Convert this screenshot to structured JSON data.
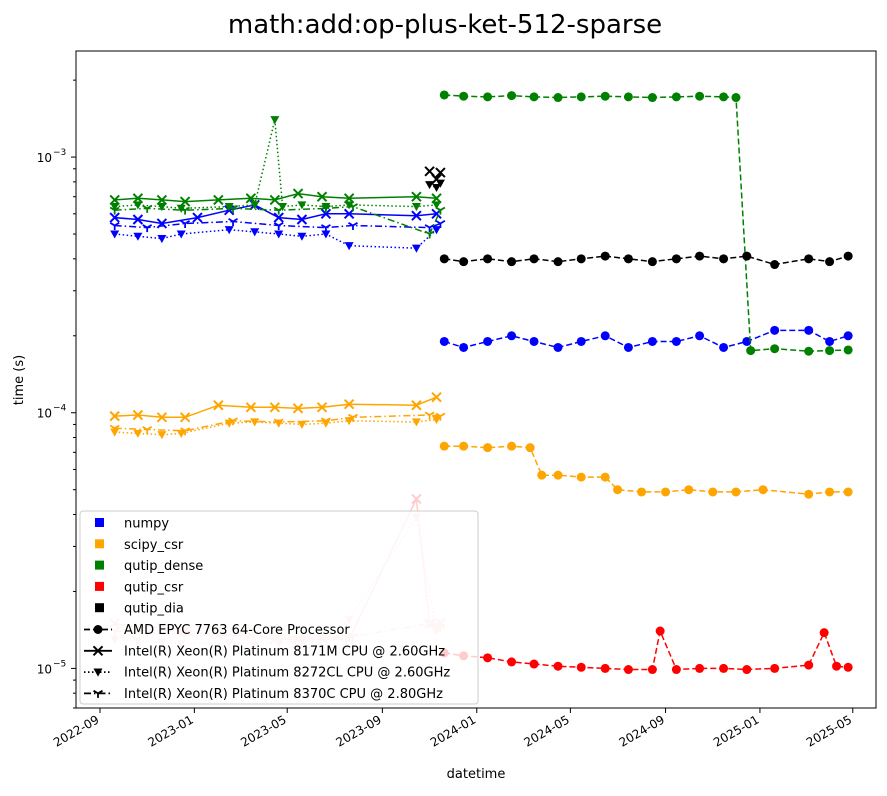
{
  "chart_data": {
    "type": "line",
    "title": "math:add:op-plus-ket-512-sparse",
    "xlabel": "datetime",
    "ylabel": "time (s)",
    "yscale": "log",
    "xlim": [
      "2022-08-01",
      "2025-05-31"
    ],
    "ylim": [
      7e-06,
      0.0026
    ],
    "grid": false,
    "legend_position": "lower-left",
    "x_ticks": [
      "2022-09",
      "2023-01",
      "2023-05",
      "2023-09",
      "2024-01",
      "2024-05",
      "2024-09",
      "2025-01",
      "2025-05"
    ],
    "x_tick_dates": [
      "2022-09-01",
      "2023-01-01",
      "2023-05-01",
      "2023-09-01",
      "2024-01-01",
      "2024-05-01",
      "2024-09-01",
      "2025-01-01",
      "2025-05-01"
    ],
    "y_ticks": [
      {
        "value": 1e-05,
        "base": "10",
        "exp": "−5"
      },
      {
        "value": 0.0001,
        "base": "10",
        "exp": "−4"
      },
      {
        "value": 0.001,
        "base": "10",
        "exp": "−3"
      }
    ],
    "legend_colors": [
      {
        "label": "numpy",
        "color": "#0000ff"
      },
      {
        "label": "scipy_csr",
        "color": "#ffa500"
      },
      {
        "label": "qutip_dense",
        "color": "#008000"
      },
      {
        "label": "qutip_csr",
        "color": "#ff0000"
      },
      {
        "label": "qutip_dia",
        "color": "#000000"
      }
    ],
    "legend_cpus": [
      {
        "label": "AMD EPYC 7763 64-Core Processor",
        "marker": "circle",
        "dash": "dashed"
      },
      {
        "label": "Intel(R) Xeon(R) Platinum 8171M CPU @ 2.60GHz",
        "marker": "x",
        "dash": "solid"
      },
      {
        "label": "Intel(R) Xeon(R) Platinum 8272CL CPU @ 2.60GHz",
        "marker": "triangle-down",
        "dash": "dotted"
      },
      {
        "label": "Intel(R) Xeon(R) Platinum 8370C CPU @ 2.80GHz",
        "marker": "tri-down",
        "dash": "dashdot"
      }
    ],
    "series": [
      {
        "library": "numpy",
        "cpu": "AMD EPYC 7763 64-Core Processor",
        "color": "#0000ff",
        "x": [
          "2023-11-20",
          "2023-12-15",
          "2024-01-15",
          "2024-02-15",
          "2024-03-15",
          "2024-04-15",
          "2024-05-15",
          "2024-06-15",
          "2024-07-15",
          "2024-08-15",
          "2024-09-15",
          "2024-10-15",
          "2024-11-15",
          "2024-12-15",
          "2025-01-20",
          "2025-03-05",
          "2025-04-01",
          "2025-04-25"
        ],
        "y": [
          0.00019,
          0.00018,
          0.00019,
          0.0002,
          0.00019,
          0.00018,
          0.00019,
          0.0002,
          0.00018,
          0.00019,
          0.00019,
          0.0002,
          0.00018,
          0.00019,
          0.00021,
          0.00021,
          0.00019,
          0.0002
        ]
      },
      {
        "library": "numpy",
        "cpu": "Intel(R) Xeon(R) Platinum 8171M CPU @ 2.60GHz",
        "color": "#0000ff",
        "x": [
          "2022-09-20",
          "2022-10-20",
          "2022-11-20",
          "2023-01-05",
          "2023-02-15",
          "2023-03-20",
          "2023-04-20",
          "2023-05-20",
          "2023-06-20",
          "2023-07-20",
          "2023-10-15",
          "2023-11-10"
        ],
        "y": [
          0.00058,
          0.00057,
          0.00055,
          0.00058,
          0.00062,
          0.00065,
          0.00058,
          0.00057,
          0.0006,
          0.0006,
          0.00059,
          0.0006
        ]
      },
      {
        "library": "numpy",
        "cpu": "Intel(R) Xeon(R) Platinum 8272CL CPU @ 2.60GHz",
        "color": "#0000ff",
        "x": [
          "2022-09-20",
          "2022-10-20",
          "2022-11-20",
          "2022-12-15",
          "2023-02-15",
          "2023-03-20",
          "2023-04-20",
          "2023-05-20",
          "2023-06-20",
          "2023-07-20",
          "2023-10-15",
          "2023-11-10"
        ],
        "y": [
          0.0005,
          0.00049,
          0.00048,
          0.0005,
          0.00052,
          0.00051,
          0.0005,
          0.00049,
          0.0005,
          0.00045,
          0.00044,
          0.00052
        ]
      },
      {
        "library": "numpy",
        "cpu": "Intel(R) Xeon(R) Platinum 8370C CPU @ 2.80GHz",
        "color": "#0000ff",
        "x": [
          "2022-09-20",
          "2022-11-01",
          "2022-12-20",
          "2023-02-20",
          "2023-04-20",
          "2023-06-20",
          "2023-07-25",
          "2023-11-01",
          "2023-11-15"
        ],
        "y": [
          0.00054,
          0.00053,
          0.00055,
          0.00056,
          0.00054,
          0.00053,
          0.00054,
          0.00053,
          0.00055
        ]
      },
      {
        "library": "scipy_csr",
        "cpu": "AMD EPYC 7763 64-Core Processor",
        "color": "#ffa500",
        "x": [
          "2023-11-20",
          "2023-12-15",
          "2024-01-15",
          "2024-02-15",
          "2024-03-10",
          "2024-03-25",
          "2024-04-15",
          "2024-05-15",
          "2024-06-15",
          "2024-07-01",
          "2024-08-01",
          "2024-09-01",
          "2024-10-01",
          "2024-11-01",
          "2024-12-01",
          "2025-01-05",
          "2025-03-05",
          "2025-04-01",
          "2025-04-25"
        ],
        "y": [
          7.4e-05,
          7.4e-05,
          7.3e-05,
          7.4e-05,
          7.3e-05,
          5.7e-05,
          5.7e-05,
          5.6e-05,
          5.6e-05,
          5e-05,
          4.9e-05,
          4.9e-05,
          5e-05,
          4.9e-05,
          4.9e-05,
          5e-05,
          4.8e-05,
          4.9e-05,
          4.9e-05
        ]
      },
      {
        "library": "scipy_csr",
        "cpu": "Intel(R) Xeon(R) Platinum 8171M CPU @ 2.60GHz",
        "color": "#ffa500",
        "x": [
          "2022-09-20",
          "2022-10-20",
          "2022-11-20",
          "2022-12-20",
          "2023-02-01",
          "2023-03-15",
          "2023-04-15",
          "2023-05-15",
          "2023-06-15",
          "2023-07-20",
          "2023-10-15",
          "2023-11-10"
        ],
        "y": [
          9.7e-05,
          9.8e-05,
          9.6e-05,
          9.6e-05,
          0.000107,
          0.000105,
          0.000105,
          0.000104,
          0.000105,
          0.000108,
          0.000107,
          0.000115
        ]
      },
      {
        "library": "scipy_csr",
        "cpu": "Intel(R) Xeon(R) Platinum 8272CL CPU @ 2.60GHz",
        "color": "#ffa500",
        "x": [
          "2022-09-20",
          "2022-10-20",
          "2022-11-20",
          "2022-12-15",
          "2023-02-15",
          "2023-03-20",
          "2023-04-20",
          "2023-05-20",
          "2023-06-20",
          "2023-07-20",
          "2023-10-15",
          "2023-11-10"
        ],
        "y": [
          8.4e-05,
          8.3e-05,
          8.2e-05,
          8.3e-05,
          9.1e-05,
          9.2e-05,
          9.1e-05,
          9e-05,
          9.1e-05,
          9.3e-05,
          9.2e-05,
          9.4e-05
        ]
      },
      {
        "library": "scipy_csr",
        "cpu": "Intel(R) Xeon(R) Platinum 8370C CPU @ 2.80GHz",
        "color": "#ffa500",
        "x": [
          "2022-09-20",
          "2022-11-01",
          "2022-12-20",
          "2023-02-20",
          "2023-04-20",
          "2023-06-20",
          "2023-07-25",
          "2023-11-01",
          "2023-11-15"
        ],
        "y": [
          8.7e-05,
          8.6e-05,
          8.5e-05,
          9.3e-05,
          9.2e-05,
          9.3e-05,
          9.6e-05,
          9.8e-05,
          9.7e-05
        ]
      },
      {
        "library": "qutip_dense",
        "cpu": "AMD EPYC 7763 64-Core Processor",
        "color": "#008000",
        "x": [
          "2023-11-20",
          "2023-12-15",
          "2024-01-15",
          "2024-02-15",
          "2024-03-15",
          "2024-04-15",
          "2024-05-15",
          "2024-06-15",
          "2024-07-15",
          "2024-08-15",
          "2024-09-15",
          "2024-10-15",
          "2024-11-15",
          "2024-12-01",
          "2024-12-20",
          "2025-01-20",
          "2025-03-05",
          "2025-04-01",
          "2025-04-25"
        ],
        "y": [
          0.00175,
          0.00173,
          0.00172,
          0.00174,
          0.00172,
          0.00171,
          0.00172,
          0.00173,
          0.00172,
          0.00171,
          0.00172,
          0.00173,
          0.00172,
          0.00171,
          0.000175,
          0.000178,
          0.000174,
          0.000175,
          0.000176
        ]
      },
      {
        "library": "qutip_dense",
        "cpu": "Intel(R) Xeon(R) Platinum 8171M CPU @ 2.60GHz",
        "color": "#008000",
        "x": [
          "2022-09-20",
          "2022-10-20",
          "2022-11-20",
          "2022-12-20",
          "2023-02-01",
          "2023-03-15",
          "2023-04-15",
          "2023-05-15",
          "2023-06-15",
          "2023-07-20",
          "2023-10-15",
          "2023-11-10"
        ],
        "y": [
          0.00068,
          0.00069,
          0.00068,
          0.00067,
          0.00068,
          0.00069,
          0.00068,
          0.00072,
          0.0007,
          0.00069,
          0.0007,
          0.00069
        ]
      },
      {
        "library": "qutip_dense",
        "cpu": "Intel(R) Xeon(R) Platinum 8272CL CPU @ 2.60GHz",
        "color": "#008000",
        "x": [
          "2022-09-20",
          "2022-10-20",
          "2022-11-20",
          "2022-12-15",
          "2023-02-15",
          "2023-03-20",
          "2023-04-15",
          "2023-04-25",
          "2023-05-20",
          "2023-06-20",
          "2023-07-20",
          "2023-10-15",
          "2023-11-10"
        ],
        "y": [
          0.00064,
          0.00065,
          0.00064,
          0.00063,
          0.00064,
          0.00065,
          0.0014,
          0.00064,
          0.00065,
          0.00064,
          0.00065,
          0.00064,
          0.00065
        ]
      },
      {
        "library": "qutip_dense",
        "cpu": "Intel(R) Xeon(R) Platinum 8370C CPU @ 2.80GHz",
        "color": "#008000",
        "x": [
          "2022-09-20",
          "2022-11-01",
          "2022-12-20",
          "2023-02-20",
          "2023-04-20",
          "2023-06-20",
          "2023-07-25",
          "2023-11-01",
          "2023-11-15"
        ],
        "y": [
          0.00062,
          0.00063,
          0.00062,
          0.00063,
          0.00062,
          0.00063,
          0.00064,
          0.0005,
          0.00062
        ]
      },
      {
        "library": "qutip_csr",
        "cpu": "AMD EPYC 7763 64-Core Processor",
        "color": "#ff0000",
        "x": [
          "2023-11-20",
          "2023-12-15",
          "2024-01-15",
          "2024-02-15",
          "2024-03-15",
          "2024-04-15",
          "2024-05-15",
          "2024-06-15",
          "2024-07-15",
          "2024-08-15",
          "2024-08-25",
          "2024-09-15",
          "2024-10-15",
          "2024-11-15",
          "2024-12-15",
          "2025-01-20",
          "2025-03-05",
          "2025-03-25",
          "2025-04-10",
          "2025-04-25"
        ],
        "y": [
          1.15e-05,
          1.12e-05,
          1.1e-05,
          1.06e-05,
          1.04e-05,
          1.02e-05,
          1.01e-05,
          1e-05,
          9.9e-06,
          9.9e-06,
          1.4e-05,
          9.9e-06,
          1e-05,
          1e-05,
          9.9e-06,
          1e-05,
          1.03e-05,
          1.38e-05,
          1.02e-05,
          1.01e-05
        ]
      },
      {
        "library": "qutip_csr",
        "cpu": "Intel(R) Xeon(R) Platinum 8171M CPU @ 2.60GHz",
        "color": "#ffcccc",
        "x": [
          "2022-09-20",
          "2022-10-20",
          "2022-11-20",
          "2022-12-20",
          "2023-02-01",
          "2023-03-15",
          "2023-04-15",
          "2023-05-15",
          "2023-06-15",
          "2023-07-20",
          "2023-10-15",
          "2023-11-01",
          "2023-11-15"
        ],
        "y": [
          1.5e-05,
          1.45e-05,
          1.45e-05,
          1.4e-05,
          1.35e-05,
          1.35e-05,
          1.3e-05,
          1.3e-05,
          1.3e-05,
          1.3e-05,
          4.6e-05,
          1.5e-05,
          1.5e-05
        ]
      },
      {
        "library": "qutip_csr",
        "cpu": "Intel(R) Xeon(R) Platinum 8272CL CPU @ 2.60GHz",
        "color": "#ffcccc",
        "x": [
          "2022-09-20",
          "2022-10-20",
          "2022-11-20",
          "2022-12-15",
          "2023-02-15",
          "2023-03-20",
          "2023-04-20",
          "2023-05-20",
          "2023-06-20",
          "2023-07-20",
          "2023-10-15",
          "2023-11-10"
        ],
        "y": [
          1.3e-05,
          1.28e-05,
          1.27e-05,
          1.25e-05,
          1.26e-05,
          1.24e-05,
          1.25e-05,
          1.28e-05,
          1.3e-05,
          1.55e-05,
          3.9e-05,
          1.4e-05
        ]
      },
      {
        "library": "qutip_csr",
        "cpu": "Intel(R) Xeon(R) Platinum 8370C CPU @ 2.80GHz",
        "color": "#ffcccc",
        "x": [
          "2022-09-20",
          "2022-11-01",
          "2022-12-20",
          "2023-02-20",
          "2023-04-20",
          "2023-06-20",
          "2023-07-25",
          "2023-11-01",
          "2023-11-15"
        ],
        "y": [
          1.4e-05,
          1.38e-05,
          1.36e-05,
          1.34e-05,
          1.33e-05,
          1.32e-05,
          1.33e-05,
          1.5e-05,
          1.45e-05
        ]
      },
      {
        "library": "qutip_dia",
        "cpu": "AMD EPYC 7763 64-Core Processor",
        "color": "#000000",
        "x": [
          "2023-11-20",
          "2023-12-15",
          "2024-01-15",
          "2024-02-15",
          "2024-03-15",
          "2024-04-15",
          "2024-05-15",
          "2024-06-15",
          "2024-07-15",
          "2024-08-15",
          "2024-09-15",
          "2024-10-15",
          "2024-11-15",
          "2024-12-15",
          "2025-01-20",
          "2025-03-05",
          "2025-04-01",
          "2025-04-25"
        ],
        "y": [
          0.0004,
          0.00039,
          0.0004,
          0.00039,
          0.0004,
          0.00039,
          0.0004,
          0.00041,
          0.0004,
          0.00039,
          0.0004,
          0.00041,
          0.0004,
          0.00041,
          0.00038,
          0.0004,
          0.00039,
          0.00041
        ]
      },
      {
        "library": "qutip_dia",
        "cpu": "Intel(R) Xeon(R) Platinum 8171M CPU @ 2.60GHz",
        "color": "#000000",
        "x": [
          "2023-11-01",
          "2023-11-10",
          "2023-11-15"
        ],
        "y": [
          0.00088,
          0.00082,
          0.00087
        ]
      },
      {
        "library": "qutip_dia",
        "cpu": "Intel(R) Xeon(R) Platinum 8272CL CPU @ 2.60GHz",
        "color": "#000000",
        "x": [
          "2023-11-01",
          "2023-11-10",
          "2023-11-15"
        ],
        "y": [
          0.00078,
          0.00076,
          0.00079
        ]
      }
    ]
  }
}
